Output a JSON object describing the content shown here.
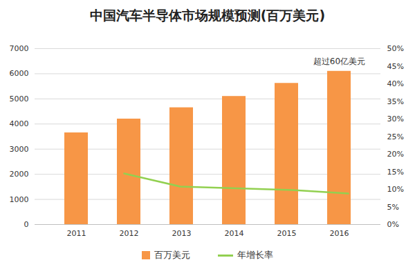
{
  "chart_data": {
    "type": "bar",
    "title": "中国汽车半导体市场规模预测(百万美元)",
    "categories": [
      "2011",
      "2012",
      "2013",
      "2014",
      "2015",
      "2016"
    ],
    "series": [
      {
        "name": "百万美元",
        "type": "bar",
        "color": "#F79646",
        "values": [
          3650,
          4200,
          4650,
          5100,
          5620,
          6100
        ]
      },
      {
        "name": "年增长率",
        "type": "line",
        "axis": "y2",
        "color": "#92D050",
        "values": [
          null,
          14.5,
          10.8,
          10.3,
          9.8,
          8.8
        ]
      }
    ],
    "ylim": [
      0,
      7000
    ],
    "yticks": [
      0,
      1000,
      2000,
      3000,
      4000,
      5000,
      6000,
      7000
    ],
    "y2lim": [
      0,
      50
    ],
    "y2ticks": [
      {
        "value": 0,
        "label": "0%"
      },
      {
        "value": 5,
        "label": "5%"
      },
      {
        "value": 10,
        "label": "10%"
      },
      {
        "value": 15,
        "label": "15%"
      },
      {
        "value": 20,
        "label": "20%"
      },
      {
        "value": 25,
        "label": "25%"
      },
      {
        "value": 30,
        "label": "30%"
      },
      {
        "value": 35,
        "label": "35%"
      },
      {
        "value": 40,
        "label": "40%"
      },
      {
        "value": 45,
        "label": "45%"
      },
      {
        "value": 50,
        "label": "50%"
      }
    ],
    "annotations": [
      {
        "text": "超过60亿美元",
        "x": "2016"
      }
    ],
    "grid": true,
    "legend": "bottom"
  }
}
